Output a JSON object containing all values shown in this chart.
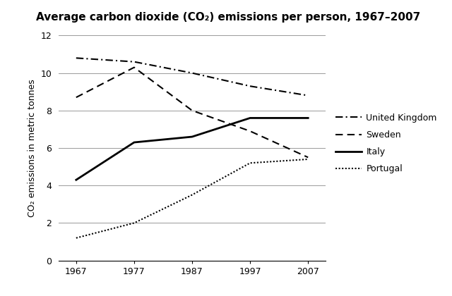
{
  "title": "Average carbon dioxide (CO₂) emissions per person, 1967–2007",
  "ylabel": "CO₂ emissions in metric tonnes",
  "years": [
    1967,
    1977,
    1987,
    1997,
    2007
  ],
  "series": {
    "United Kingdom": {
      "values": [
        10.8,
        10.6,
        10.0,
        9.3,
        8.8
      ],
      "linestyle": "dashdot",
      "linewidth": 1.5,
      "color": "#000000"
    },
    "Sweden": {
      "values": [
        8.7,
        10.3,
        8.0,
        6.9,
        5.5
      ],
      "linestyle": "dashed",
      "linewidth": 1.5,
      "color": "#000000"
    },
    "Italy": {
      "values": [
        4.3,
        6.3,
        6.6,
        7.6,
        7.6
      ],
      "linestyle": "solid",
      "linewidth": 2.0,
      "color": "#000000"
    },
    "Portugal": {
      "values": [
        1.2,
        2.0,
        3.5,
        5.2,
        5.4
      ],
      "linestyle": "dotted",
      "linewidth": 1.5,
      "color": "#000000"
    }
  },
  "xlim_left": 1964,
  "xlim_right": 2010,
  "ylim": [
    0,
    12
  ],
  "yticks": [
    0,
    2,
    4,
    6,
    8,
    10,
    12
  ],
  "xticks": [
    1967,
    1977,
    1987,
    1997,
    2007
  ],
  "grid_color": "#999999",
  "background_color": "#ffffff",
  "title_fontsize": 11,
  "axis_fontsize": 9,
  "legend_fontsize": 9
}
